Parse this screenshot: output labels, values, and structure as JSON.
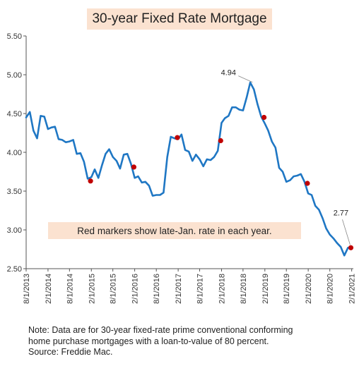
{
  "chart_data": {
    "type": "line",
    "title": "30-year Fixed Rate Mortgage",
    "annotation": "Red markers show late-Jan. rate in each year.",
    "ylim": [
      2.5,
      5.5
    ],
    "y_ticks": [
      "5.50",
      "5.00",
      "4.50",
      "4.00",
      "3.50",
      "3.00",
      "2.50"
    ],
    "x_ticks": [
      "8/1/2013",
      "2/1/2014",
      "8/1/2014",
      "2/1/2015",
      "8/1/2015",
      "2/1/2016",
      "8/1/2016",
      "2/1/2017",
      "8/1/2017",
      "2/1/2018",
      "8/1/2018",
      "2/1/2019",
      "8/1/2019",
      "2/1/2020",
      "8/1/2020",
      "2/1/2021"
    ],
    "grid": false,
    "line_color": "#1F77C4",
    "marker_color": "#C00000",
    "series": [
      {
        "x": [
          "2013-08-01",
          "2013-09-01",
          "2013-10-01",
          "2013-11-01",
          "2013-12-01",
          "2014-01-01",
          "2014-02-01",
          "2014-03-01",
          "2014-04-01",
          "2014-05-01",
          "2014-06-01",
          "2014-07-01",
          "2014-08-01",
          "2014-09-01",
          "2014-10-01",
          "2014-11-01",
          "2014-12-01",
          "2015-01-01",
          "2015-02-01",
          "2015-03-01",
          "2015-04-01",
          "2015-05-01",
          "2015-06-01",
          "2015-07-01",
          "2015-08-01",
          "2015-09-01",
          "2015-10-01",
          "2015-11-01",
          "2015-12-01",
          "2016-01-01",
          "2016-02-01",
          "2016-03-01",
          "2016-04-01",
          "2016-05-01",
          "2016-06-01",
          "2016-07-01",
          "2016-08-01",
          "2016-09-01",
          "2016-10-01",
          "2016-11-01",
          "2016-12-01",
          "2017-01-01",
          "2017-02-01",
          "2017-03-01",
          "2017-04-01",
          "2017-05-01",
          "2017-06-01",
          "2017-07-01",
          "2017-08-01",
          "2017-09-01",
          "2017-10-01",
          "2017-11-01",
          "2017-12-01",
          "2018-01-01",
          "2018-02-01",
          "2018-03-01",
          "2018-04-01",
          "2018-05-01",
          "2018-06-01",
          "2018-07-01",
          "2018-08-01",
          "2018-09-01",
          "2018-10-01",
          "2018-11-01",
          "2018-12-01",
          "2019-01-01",
          "2019-02-01",
          "2019-03-01",
          "2019-04-01",
          "2019-05-01",
          "2019-06-01",
          "2019-07-01",
          "2019-08-01",
          "2019-09-01",
          "2019-10-01",
          "2019-11-01",
          "2019-12-01",
          "2020-01-01",
          "2020-02-01",
          "2020-03-01",
          "2020-04-01",
          "2020-05-01",
          "2020-06-01",
          "2020-07-01",
          "2020-08-01",
          "2020-09-01",
          "2020-10-01",
          "2020-11-01",
          "2020-12-01",
          "2021-01-01",
          "2021-02-01"
        ],
        "values": [
          4.45,
          4.52,
          4.28,
          4.18,
          4.47,
          4.46,
          4.3,
          4.32,
          4.33,
          4.17,
          4.16,
          4.13,
          4.14,
          4.16,
          3.98,
          3.99,
          3.88,
          3.66,
          3.68,
          3.78,
          3.67,
          3.83,
          3.98,
          4.04,
          3.94,
          3.89,
          3.79,
          3.97,
          3.98,
          3.85,
          3.67,
          3.69,
          3.61,
          3.62,
          3.57,
          3.44,
          3.45,
          3.45,
          3.48,
          3.94,
          4.2,
          4.18,
          4.17,
          4.23,
          4.03,
          4.01,
          3.89,
          3.97,
          3.91,
          3.82,
          3.91,
          3.9,
          3.94,
          4.02,
          4.38,
          4.44,
          4.47,
          4.58,
          4.58,
          4.55,
          4.54,
          4.71,
          4.9,
          4.81,
          4.62,
          4.46,
          4.37,
          4.28,
          4.14,
          4.06,
          3.8,
          3.75,
          3.62,
          3.64,
          3.69,
          3.7,
          3.72,
          3.62,
          3.47,
          3.45,
          3.31,
          3.26,
          3.15,
          3.02,
          2.94,
          2.89,
          2.83,
          2.78,
          2.67,
          2.77,
          2.77
        ]
      }
    ],
    "markers": [
      {
        "x": "2015-01-25",
        "y": 3.63
      },
      {
        "x": "2016-01-25",
        "y": 3.81
      },
      {
        "x": "2017-01-25",
        "y": 4.19
      },
      {
        "x": "2018-01-25",
        "y": 4.15
      },
      {
        "x": "2019-01-25",
        "y": 4.45
      },
      {
        "x": "2020-01-25",
        "y": 3.6
      },
      {
        "x": "2021-01-25",
        "y": 2.77
      }
    ],
    "callouts": [
      {
        "text": "4.94",
        "x": "2018-11-01",
        "y": 4.94
      },
      {
        "text": "2.77",
        "x": "2021-01-25",
        "y": 2.77
      }
    ]
  },
  "footnote": {
    "line1": "Note: Data are for 30-year fixed-rate prime conventional conforming",
    "line2": "home purchase mortgages with a loan-to-value of 80 percent.",
    "line3": "Source: Freddie Mac."
  }
}
